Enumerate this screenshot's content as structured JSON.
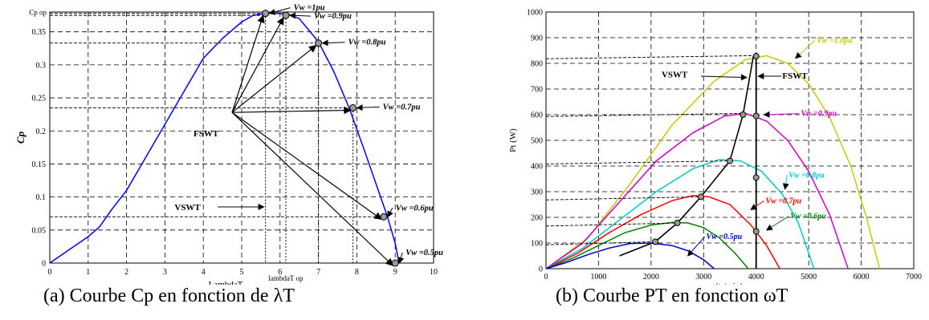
{
  "chart_data": [
    {
      "type": "line",
      "caption": "(a) Courbe Cp en fonction de λT",
      "xlabel": "LambdaT",
      "ylabel": "Cp",
      "xlim": [
        0,
        10
      ],
      "ylim": [
        0,
        0.38
      ],
      "xticks": [
        "0",
        "1",
        "2",
        "3",
        "4",
        "5",
        "6",
        "7",
        "8",
        "9",
        "10"
      ],
      "yticks": [
        "0",
        "0.05",
        "0.1",
        "0.15",
        "0.2",
        "0.25",
        "0.3",
        "0.35"
      ],
      "grid": true,
      "curve_color": "#0000ff",
      "series": [
        {
          "x": [
            0,
            0.5,
            1.0,
            1.3,
            1.6,
            2.0,
            2.5,
            3.0,
            3.5,
            4.0,
            4.5,
            5.0,
            5.3,
            5.6,
            5.9,
            6.2,
            6.5,
            7.0,
            7.4,
            7.8,
            8.2,
            8.5,
            8.8,
            9.0,
            9.1
          ],
          "y": [
            0,
            0.02,
            0.04,
            0.055,
            0.08,
            0.11,
            0.16,
            0.21,
            0.26,
            0.31,
            0.34,
            0.365,
            0.375,
            0.378,
            0.378,
            0.377,
            0.37,
            0.335,
            0.29,
            0.235,
            0.17,
            0.12,
            0.07,
            0.03,
            0
          ]
        }
      ],
      "operating_points": [
        {
          "label": "Vw =1pu",
          "x": 5.62,
          "y": 0.378
        },
        {
          "label": "Vw =0.9pu",
          "x": 6.15,
          "y": 0.375
        },
        {
          "label": "Vw =0.8pu",
          "x": 7.0,
          "y": 0.333
        },
        {
          "label": "Vw =0.7pu",
          "x": 7.9,
          "y": 0.235
        },
        {
          "label": "Vw =0.6pu",
          "x": 8.7,
          "y": 0.07
        },
        {
          "label": "Vw =0.5pu",
          "x": 9.0,
          "y": 0.0
        }
      ],
      "annotations": {
        "cp_op": "Cp op",
        "lambda_op": "lambdaT op",
        "fswt": "FSWT",
        "vswt": "VSWT"
      }
    },
    {
      "type": "line",
      "caption": "(b) Courbe PT en fonction ωT",
      "xlabel": "w(tr/min)",
      "ylabel": "Pt (W)",
      "xlim": [
        0,
        7000
      ],
      "ylim": [
        0,
        1000
      ],
      "xticks": [
        "0",
        "1000",
        "2000",
        "3000",
        "4000",
        "5000",
        "6000",
        "7000"
      ],
      "yticks": [
        "0",
        "100",
        "200",
        "300",
        "400",
        "500",
        "600",
        "700",
        "800",
        "900",
        "1000"
      ],
      "grid": true,
      "series": [
        {
          "name": "Vw =1.0pu",
          "color": "#c8c800",
          "x": [
            0,
            800,
            1600,
            2400,
            3200,
            3800,
            4200,
            4600,
            5000,
            5400,
            5800,
            6100,
            6350
          ],
          "y": [
            0,
            120,
            330,
            560,
            730,
            815,
            830,
            800,
            720,
            590,
            400,
            200,
            0
          ]
        },
        {
          "name": "Vw =0.9pu",
          "color": "#cc00cc",
          "x": [
            0,
            700,
            1400,
            2100,
            2800,
            3400,
            3800,
            4200,
            4600,
            5000,
            5400,
            5750
          ],
          "y": [
            0,
            100,
            260,
            420,
            530,
            595,
            605,
            575,
            500,
            380,
            210,
            0
          ]
        },
        {
          "name": "Vw =0.8pu",
          "color": "#00c8c8",
          "x": [
            0,
            700,
            1400,
            2100,
            2800,
            3300,
            3700,
            4100,
            4500,
            4800,
            5100
          ],
          "y": [
            0,
            80,
            190,
            300,
            390,
            425,
            420,
            380,
            290,
            180,
            0
          ]
        },
        {
          "name": "Vw =0.7pu",
          "color": "#ff0000",
          "x": [
            0,
            600,
            1200,
            1800,
            2400,
            2800,
            3100,
            3500,
            3900,
            4200,
            4450
          ],
          "y": [
            0,
            60,
            140,
            210,
            265,
            285,
            280,
            250,
            170,
            90,
            0
          ]
        },
        {
          "name": "Vw =0.6pu",
          "color": "#008000",
          "x": [
            0,
            500,
            1000,
            1500,
            2000,
            2400,
            2700,
            3000,
            3300,
            3600,
            3850
          ],
          "y": [
            0,
            40,
            90,
            140,
            170,
            180,
            178,
            160,
            120,
            60,
            0
          ]
        },
        {
          "name": "Vw =0.5pu",
          "color": "#0000cc",
          "x": [
            0,
            400,
            800,
            1200,
            1600,
            2000,
            2400,
            2700,
            3000,
            3200
          ],
          "y": [
            0,
            25,
            55,
            80,
            98,
            100,
            90,
            70,
            35,
            0
          ]
        }
      ],
      "vswt_curve": {
        "x": [
          1400,
          2080,
          2500,
          2950,
          3500,
          3750,
          3950
        ],
        "y": [
          50,
          105,
          178,
          280,
          420,
          600,
          830
        ]
      },
      "fswt_points": {
        "x": [
          4000,
          4000,
          4000,
          4000,
          4000
        ],
        "y": [
          828,
          595,
          355,
          145,
          0
        ]
      },
      "annotations": {
        "vswt": "VSWT",
        "fswt": "FSWT"
      }
    }
  ]
}
